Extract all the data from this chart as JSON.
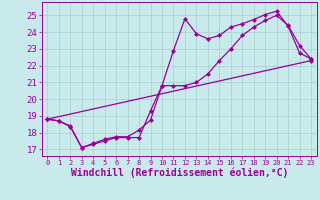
{
  "bg_color": "#c8eaea",
  "line_color": "#990099",
  "grid_color": "#aacccc",
  "xlabel": "Windchill (Refroidissement éolien,°C)",
  "xlabel_fontsize": 7,
  "tick_fontsize": 6,
  "xlim": [
    -0.5,
    23.5
  ],
  "ylim": [
    16.6,
    25.8
  ],
  "yticks": [
    17,
    18,
    19,
    20,
    21,
    22,
    23,
    24,
    25
  ],
  "xticks": [
    0,
    1,
    2,
    3,
    4,
    5,
    6,
    7,
    8,
    9,
    10,
    11,
    12,
    13,
    14,
    15,
    16,
    17,
    18,
    19,
    20,
    21,
    22,
    23
  ],
  "line1_x": [
    0,
    1,
    2,
    3,
    4,
    5,
    6,
    7,
    8,
    9,
    10,
    11,
    12,
    13,
    14,
    15,
    16,
    17,
    18,
    19,
    20,
    21,
    22,
    23
  ],
  "line1_y": [
    18.8,
    18.7,
    18.4,
    17.1,
    17.3,
    17.5,
    17.7,
    17.7,
    17.7,
    19.3,
    20.8,
    22.9,
    24.8,
    23.9,
    23.6,
    23.8,
    24.3,
    24.5,
    24.75,
    25.05,
    25.25,
    24.35,
    22.75,
    22.4
  ],
  "line2_x": [
    0,
    1,
    2,
    3,
    4,
    5,
    6,
    7,
    8,
    9,
    10,
    11,
    12,
    13,
    14,
    15,
    16,
    17,
    18,
    19,
    20,
    21,
    22,
    23
  ],
  "line2_y": [
    18.8,
    18.7,
    18.35,
    17.1,
    17.35,
    17.6,
    17.75,
    17.75,
    18.15,
    18.75,
    20.8,
    20.8,
    20.8,
    21.0,
    21.5,
    22.3,
    23.0,
    23.8,
    24.3,
    24.7,
    25.0,
    24.4,
    23.2,
    22.4
  ],
  "line3_x": [
    0,
    23
  ],
  "line3_y": [
    18.8,
    22.3
  ]
}
